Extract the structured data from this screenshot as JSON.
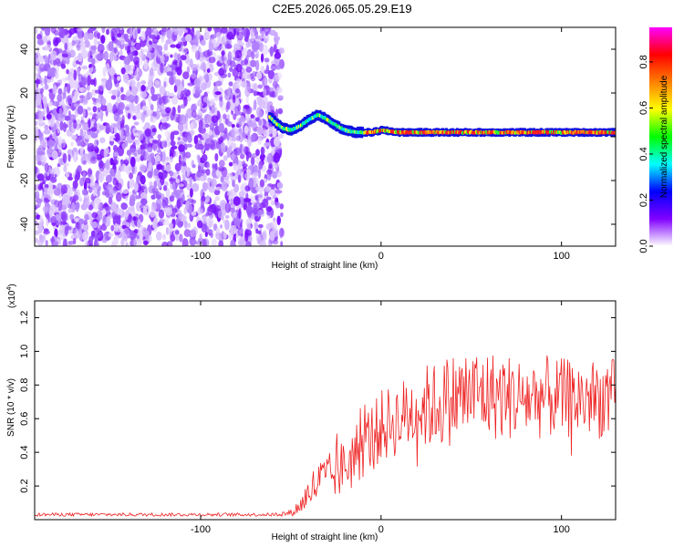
{
  "title": "C2E5.2026.065.05.29.E19",
  "chart_data": [
    {
      "type": "heatmap",
      "name": "spectrogram",
      "xlabel": "Height of straight line (km)",
      "ylabel": "Frequency (Hz)",
      "xlim": [
        -192,
        130
      ],
      "ylim": [
        -50,
        50
      ],
      "xticks": [
        -100,
        0,
        100
      ],
      "yticks": [
        -40,
        -20,
        0,
        20,
        40
      ],
      "noise_region_x": [
        -192,
        -55
      ],
      "ridge": {
        "x": [
          -62,
          -58,
          -55,
          -50,
          -45,
          -40,
          -35,
          -30,
          -25,
          -20,
          -15,
          -10,
          -5,
          0,
          10,
          20,
          40,
          60,
          80,
          100,
          130
        ],
        "freq": [
          9,
          6,
          4,
          3,
          5,
          8,
          10,
          8,
          5,
          3,
          2,
          2,
          2,
          3,
          2,
          2,
          2,
          2,
          2,
          2,
          2
        ]
      },
      "colorbar": {
        "label": "Normalized spectral amplitude",
        "range": [
          0,
          0.95
        ],
        "ticks": [
          0.0,
          0.2,
          0.4,
          0.6,
          0.8
        ],
        "tick_labels": [
          "0.0",
          "0.2",
          "0.4",
          "0.6",
          "0.8"
        ],
        "colors": [
          "#ffffff",
          "#8000ff",
          "#0000ff",
          "#00ffff",
          "#00ff00",
          "#ffff00",
          "#ff8000",
          "#ff0000",
          "#ff00ff"
        ]
      }
    },
    {
      "type": "line",
      "name": "snr",
      "xlabel": "Height of straight line (km)",
      "ylabel": "SNR (10 * v/v)",
      "y_multiplier": "(x10",
      "y_multiplier_exp": "4",
      "y_multiplier_close": ")",
      "xlim": [
        -192,
        130
      ],
      "ylim": [
        0,
        1.3
      ],
      "xticks": [
        -100,
        0,
        100
      ],
      "yticks": [
        0.2,
        0.4,
        0.6,
        0.8,
        1.0,
        1.2
      ],
      "ytick_labels": [
        "0.2",
        "0.4",
        "0.6",
        "0.8",
        "1.0",
        "1.2"
      ],
      "line_color": "#ee2222",
      "envelope": {
        "x": [
          -192,
          -60,
          -50,
          -45,
          -40,
          -35,
          -30,
          -25,
          -20,
          -15,
          -10,
          -5,
          0,
          10,
          20,
          30,
          40,
          50,
          60,
          70,
          80,
          90,
          100,
          110,
          120,
          130
        ],
        "mean": [
          0.03,
          0.03,
          0.04,
          0.08,
          0.16,
          0.22,
          0.25,
          0.27,
          0.32,
          0.38,
          0.44,
          0.5,
          0.55,
          0.6,
          0.66,
          0.68,
          0.72,
          0.75,
          0.74,
          0.73,
          0.72,
          0.73,
          0.72,
          0.72,
          0.72,
          0.72
        ],
        "spread": [
          0.01,
          0.01,
          0.02,
          0.05,
          0.1,
          0.14,
          0.14,
          0.15,
          0.18,
          0.2,
          0.2,
          0.2,
          0.22,
          0.22,
          0.25,
          0.26,
          0.28,
          0.28,
          0.27,
          0.26,
          0.25,
          0.25,
          0.24,
          0.24,
          0.24,
          0.24
        ]
      }
    }
  ]
}
